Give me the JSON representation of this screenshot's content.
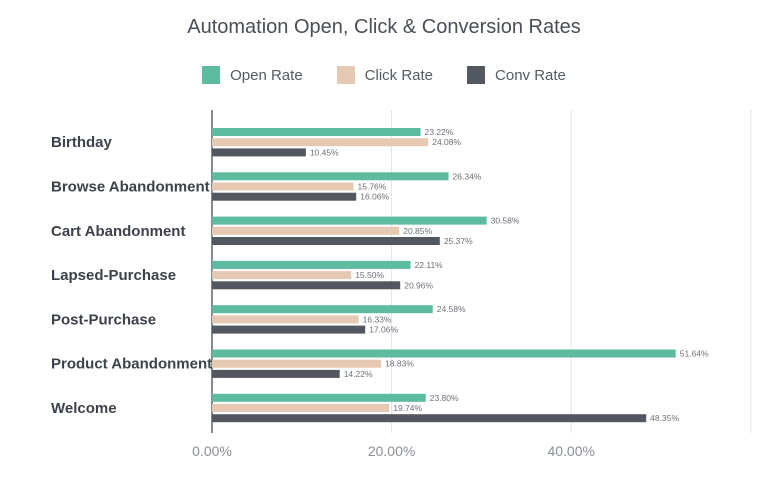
{
  "chart_data": {
    "type": "bar",
    "orientation": "horizontal",
    "title": "Automation Open, Click & Conversion Rates",
    "categories": [
      "Birthday",
      "Browse Abandonment",
      "Cart Abandonment",
      "Lapsed-Purchase",
      "Post-Purchase",
      "Product Abandonment",
      "Welcome"
    ],
    "series": [
      {
        "name": "Open Rate",
        "color": "#5dbb9f",
        "values": [
          23.22,
          26.34,
          30.58,
          22.11,
          24.58,
          51.64,
          23.8
        ],
        "labels": [
          "23.22%",
          "26.34%",
          "30.58%",
          "22.11%",
          "24.58%",
          "51.64%",
          "23.80%"
        ]
      },
      {
        "name": "Click Rate",
        "color": "#e5c9b3",
        "values": [
          24.08,
          15.76,
          20.85,
          15.5,
          16.33,
          18.83,
          19.74
        ],
        "labels": [
          "24.08%",
          "15.76%",
          "20.85%",
          "15.50%",
          "16.33%",
          "18.83%",
          "19.74%"
        ]
      },
      {
        "name": "Conv Rate",
        "color": "#53575f",
        "values": [
          10.45,
          16.06,
          25.37,
          20.96,
          17.06,
          14.22,
          48.35
        ],
        "labels": [
          "10.45%",
          "16.06%",
          "25.37%",
          "20.96%",
          "17.06%",
          "14.22%",
          "48.35%"
        ]
      }
    ],
    "xlim": [
      0,
      60
    ],
    "x_ticks": [
      {
        "value": 0,
        "label": "0.00%"
      },
      {
        "value": 20,
        "label": "20.00%"
      },
      {
        "value": 40,
        "label": "40.00%"
      }
    ],
    "gridlines": [
      0,
      20,
      40,
      60
    ],
    "grid": true,
    "legend_position": "top-center"
  }
}
